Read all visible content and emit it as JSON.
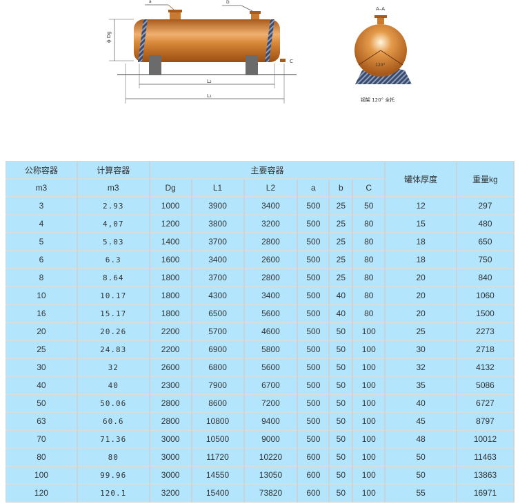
{
  "diagram": {
    "label_a": "a",
    "label_b": "D",
    "label_dg": "ϕ Dg",
    "label_c": "C",
    "label_l2": "L₂",
    "label_l1": "L₁",
    "section_label": "A–A",
    "angle_label": "120°",
    "caption": "钢架 120° 全托"
  },
  "table": {
    "headers": {
      "nominal": "公称容器",
      "nominal_unit": "m3",
      "calc": "计算容器",
      "calc_unit": "m3",
      "main": "主要容器",
      "thickness": "罐体厚度",
      "weight": "重量kg",
      "sub": [
        "Dg",
        "L1",
        "L2",
        "a",
        "b",
        "C"
      ]
    },
    "rows": [
      [
        "3",
        "2.93",
        "1000",
        "3900",
        "3400",
        "500",
        "25",
        "50",
        "12",
        "297"
      ],
      [
        "4",
        "4,07",
        "1200",
        "3800",
        "3200",
        "500",
        "25",
        "80",
        "15",
        "480"
      ],
      [
        "5",
        "5.03",
        "1400",
        "3700",
        "2800",
        "500",
        "25",
        "80",
        "18",
        "650"
      ],
      [
        "6",
        "6.3",
        "1600",
        "3400",
        "2600",
        "500",
        "25",
        "80",
        "18",
        "750"
      ],
      [
        "8",
        "8.64",
        "1800",
        "3700",
        "2800",
        "500",
        "25",
        "80",
        "20",
        "840"
      ],
      [
        "10",
        "10.17",
        "1800",
        "4300",
        "3400",
        "500",
        "40",
        "80",
        "20",
        "1060"
      ],
      [
        "16",
        "15.17",
        "1800",
        "6500",
        "5600",
        "500",
        "40",
        "80",
        "20",
        "1500"
      ],
      [
        "20",
        "20.26",
        "2200",
        "5700",
        "4600",
        "500",
        "50",
        "100",
        "25",
        "2273"
      ],
      [
        "25",
        "24.83",
        "2200",
        "6900",
        "5800",
        "500",
        "50",
        "100",
        "30",
        "2718"
      ],
      [
        "30",
        "32",
        "2600",
        "6800",
        "5600",
        "500",
        "50",
        "100",
        "32",
        "4132"
      ],
      [
        "40",
        "40",
        "2300",
        "7900",
        "6700",
        "500",
        "50",
        "100",
        "35",
        "5086"
      ],
      [
        "50",
        "50.06",
        "2800",
        "8600",
        "7200",
        "500",
        "50",
        "100",
        "40",
        "6727"
      ],
      [
        "63",
        "60.6",
        "2800",
        "10800",
        "9400",
        "500",
        "50",
        "100",
        "45",
        "8797"
      ],
      [
        "70",
        "71.36",
        "3000",
        "10500",
        "9000",
        "500",
        "50",
        "100",
        "48",
        "10012"
      ],
      [
        "80",
        "80",
        "3000",
        "11720",
        "10220",
        "600",
        "50",
        "100",
        "50",
        "11463"
      ],
      [
        "100",
        "99.96",
        "3000",
        "14550",
        "13050",
        "600",
        "50",
        "100",
        "50",
        "13863"
      ],
      [
        "120",
        "120.1",
        "3200",
        "15400",
        "73820",
        "600",
        "50",
        "100",
        "55",
        "16971"
      ]
    ]
  }
}
